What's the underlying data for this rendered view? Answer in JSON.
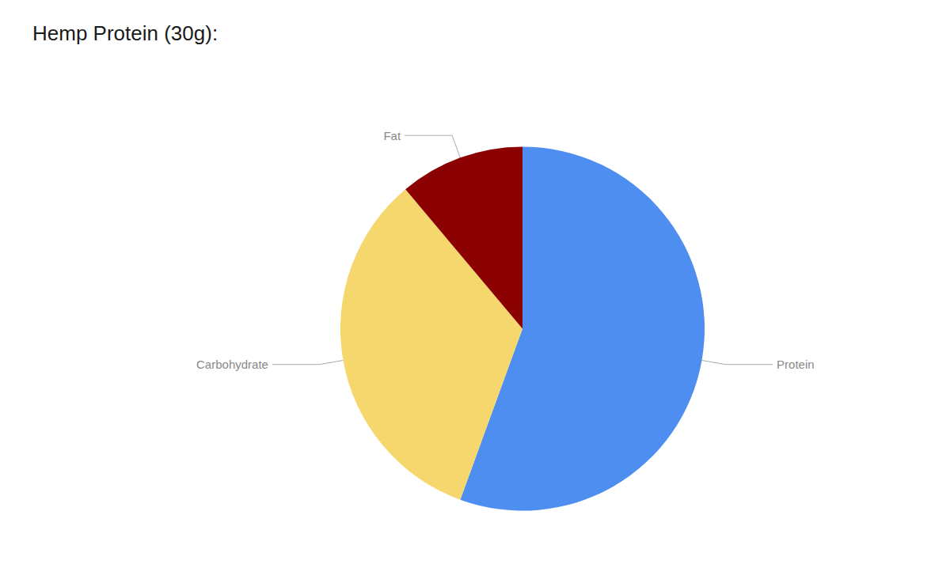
{
  "chart_data": {
    "type": "pie",
    "title": "Hemp Protein (30g):",
    "categories": [
      "Protein",
      "Carbohydrate",
      "Fat"
    ],
    "values": [
      15,
      9,
      3
    ],
    "colors": [
      "#4d8ef0",
      "#f5d76e",
      "#8b0000"
    ]
  }
}
